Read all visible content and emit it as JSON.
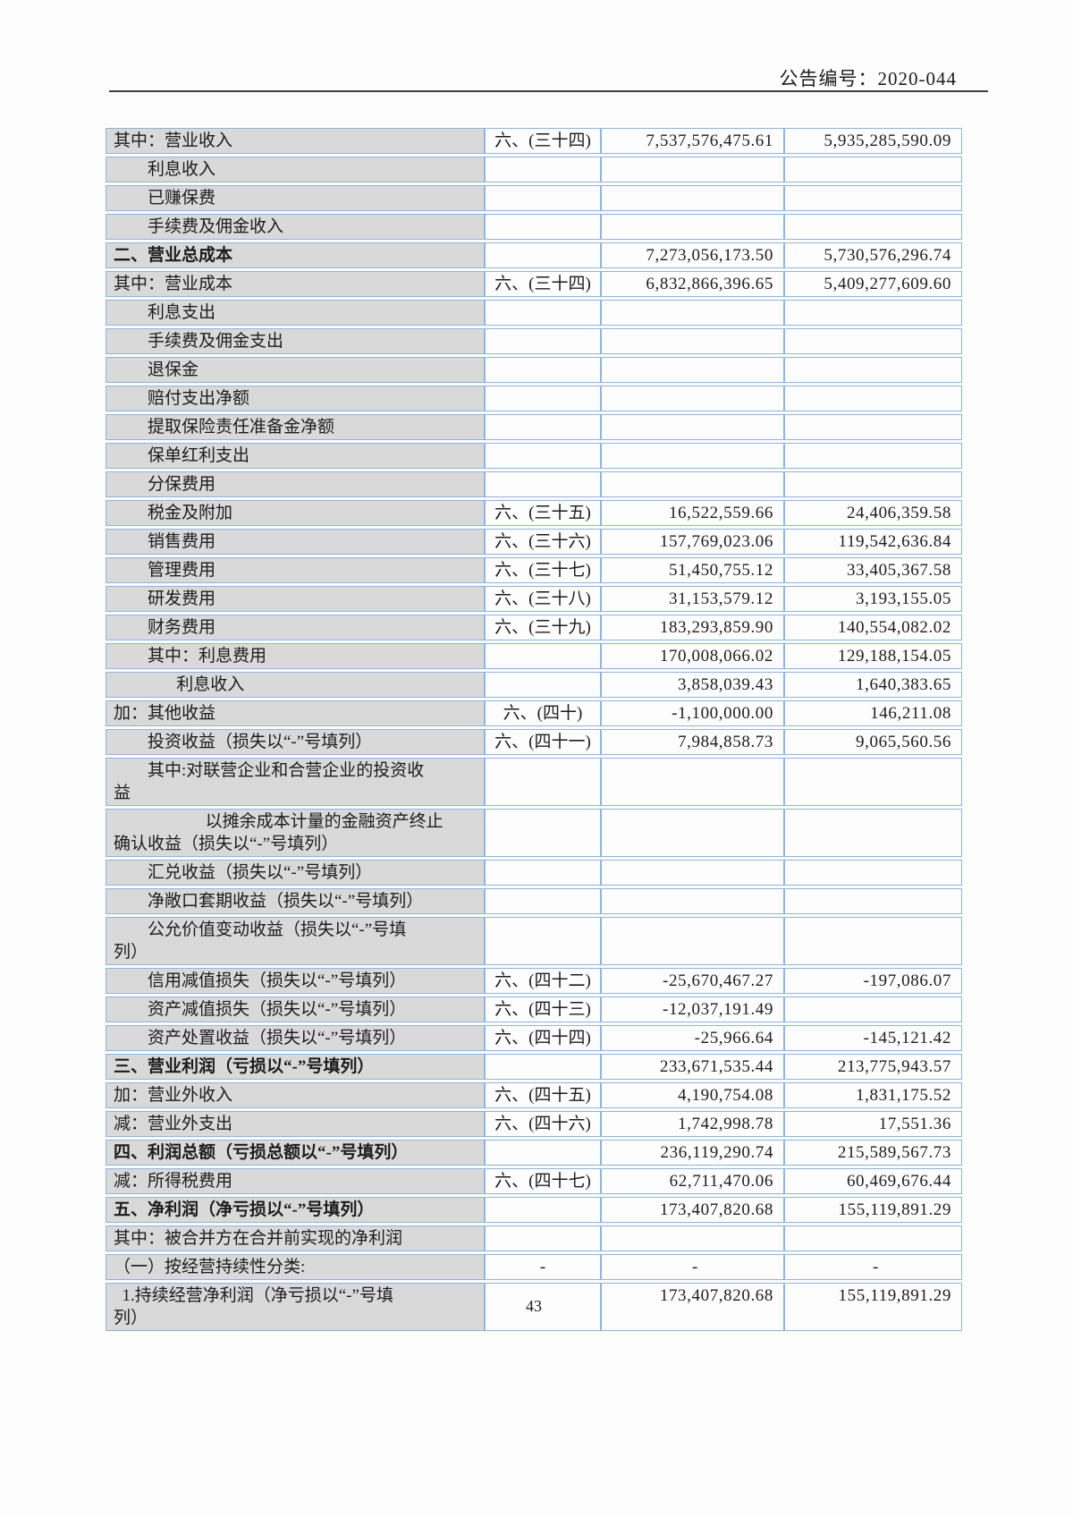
{
  "header": {
    "announcement_label": "公告编号：2020-044"
  },
  "footer": {
    "page_number": "43"
  },
  "colors": {
    "table_border": "#8db4e2",
    "item_cell_bg": "#d9d9d9",
    "rule_color": "#3f3f3f",
    "text_color": "#1c1c1c"
  },
  "table": {
    "rows": [
      {
        "item": "其中：营业收入",
        "note": "六、(三十四)",
        "current": "7,537,576,475.61",
        "prior": "5,935,285,590.09",
        "indent": 0,
        "bold": false
      },
      {
        "item": "利息收入",
        "note": "",
        "current": "",
        "prior": "",
        "indent": 1,
        "bold": false
      },
      {
        "item": "已赚保费",
        "note": "",
        "current": "",
        "prior": "",
        "indent": 1,
        "bold": false
      },
      {
        "item": "手续费及佣金收入",
        "note": "",
        "current": "",
        "prior": "",
        "indent": 1,
        "bold": false
      },
      {
        "item": "二、营业总成本",
        "note": "",
        "current": "7,273,056,173.50",
        "prior": "5,730,576,296.74",
        "indent": 0,
        "bold": true
      },
      {
        "item": "其中：营业成本",
        "note": "六、(三十四)",
        "current": "6,832,866,396.65",
        "prior": "5,409,277,609.60",
        "indent": 0,
        "bold": false
      },
      {
        "item": "利息支出",
        "note": "",
        "current": "",
        "prior": "",
        "indent": 1,
        "bold": false
      },
      {
        "item": "手续费及佣金支出",
        "note": "",
        "current": "",
        "prior": "",
        "indent": 1,
        "bold": false
      },
      {
        "item": "退保金",
        "note": "",
        "current": "",
        "prior": "",
        "indent": 1,
        "bold": false
      },
      {
        "item": "赔付支出净额",
        "note": "",
        "current": "",
        "prior": "",
        "indent": 1,
        "bold": false
      },
      {
        "item": "提取保险责任准备金净额",
        "note": "",
        "current": "",
        "prior": "",
        "indent": 1,
        "bold": false
      },
      {
        "item": "保单红利支出",
        "note": "",
        "current": "",
        "prior": "",
        "indent": 1,
        "bold": false
      },
      {
        "item": "分保费用",
        "note": "",
        "current": "",
        "prior": "",
        "indent": 1,
        "bold": false
      },
      {
        "item": "税金及附加",
        "note": "六、(三十五)",
        "current": "16,522,559.66",
        "prior": "24,406,359.58",
        "indent": 1,
        "bold": false
      },
      {
        "item": "销售费用",
        "note": "六、(三十六)",
        "current": "157,769,023.06",
        "prior": "119,542,636.84",
        "indent": 1,
        "bold": false
      },
      {
        "item": "管理费用",
        "note": "六、(三十七)",
        "current": "51,450,755.12",
        "prior": "33,405,367.58",
        "indent": 1,
        "bold": false
      },
      {
        "item": "研发费用",
        "note": "六、(三十八)",
        "current": "31,153,579.12",
        "prior": "3,193,155.05",
        "indent": 1,
        "bold": false
      },
      {
        "item": "财务费用",
        "note": "六、(三十九)",
        "current": "183,293,859.90",
        "prior": "140,554,082.02",
        "indent": 1,
        "bold": false
      },
      {
        "item": "其中：利息费用",
        "note": "",
        "current": "170,008,066.02",
        "prior": "129,188,154.05",
        "indent": 1,
        "bold": false
      },
      {
        "item": "利息收入",
        "note": "",
        "current": "3,858,039.43",
        "prior": "1,640,383.65",
        "indent": 2,
        "bold": false
      },
      {
        "item": "加：其他收益",
        "note": "六、(四十)",
        "current": "-1,100,000.00",
        "prior": "146,211.08",
        "indent": 0,
        "bold": false
      },
      {
        "item": "投资收益（损失以“-”号填列）",
        "note": "六、(四十一)",
        "current": "7,984,858.73",
        "prior": "9,065,560.56",
        "indent": 1,
        "bold": false
      },
      {
        "item": "其中:对联营企业和合营企业的投资收\n益",
        "note": "",
        "current": "",
        "prior": "",
        "indent": 1,
        "bold": false
      },
      {
        "item": "以摊余成本计量的金融资产终止\n确认收益（损失以“-”号填列）",
        "note": "",
        "current": "",
        "prior": "",
        "indent": 3,
        "bold": false
      },
      {
        "item": "汇兑收益（损失以“-”号填列）",
        "note": "",
        "current": "",
        "prior": "",
        "indent": 1,
        "bold": false
      },
      {
        "item": "净敞口套期收益（损失以“-”号填列）",
        "note": "",
        "current": "",
        "prior": "",
        "indent": 1,
        "bold": false
      },
      {
        "item": "公允价值变动收益（损失以“-”号填\n列）",
        "note": "",
        "current": "",
        "prior": "",
        "indent": 1,
        "bold": false
      },
      {
        "item": "信用减值损失（损失以“-”号填列）",
        "note": "六、(四十二)",
        "current": "-25,670,467.27",
        "prior": "-197,086.07",
        "indent": 1,
        "bold": false
      },
      {
        "item": "资产减值损失（损失以“-”号填列）",
        "note": "六、(四十三)",
        "current": "-12,037,191.49",
        "prior": "",
        "indent": 1,
        "bold": false
      },
      {
        "item": "资产处置收益（损失以“-”号填列）",
        "note": "六、(四十四)",
        "current": "-25,966.64",
        "prior": "-145,121.42",
        "indent": 1,
        "bold": false
      },
      {
        "item": "三、营业利润（亏损以“-”号填列）",
        "note": "",
        "current": "233,671,535.44",
        "prior": "213,775,943.57",
        "indent": 0,
        "bold": true
      },
      {
        "item": "加：营业外收入",
        "note": "六、(四十五)",
        "current": "4,190,754.08",
        "prior": "1,831,175.52",
        "indent": 0,
        "bold": false
      },
      {
        "item": "减：营业外支出",
        "note": "六、(四十六)",
        "current": "1,742,998.78",
        "prior": "17,551.36",
        "indent": 0,
        "bold": false
      },
      {
        "item": "四、利润总额（亏损总额以“-”号填列）",
        "note": "",
        "current": "236,119,290.74",
        "prior": "215,589,567.73",
        "indent": 0,
        "bold": true
      },
      {
        "item": "减：所得税费用",
        "note": "六、(四十七)",
        "current": "62,711,470.06",
        "prior": "60,469,676.44",
        "indent": 0,
        "bold": false
      },
      {
        "item": "五、净利润（净亏损以“-”号填列）",
        "note": "",
        "current": "173,407,820.68",
        "prior": "155,119,891.29",
        "indent": 0,
        "bold": true
      },
      {
        "item": "其中：被合并方在合并前实现的净利润",
        "note": "",
        "current": "",
        "prior": "",
        "indent": 0,
        "bold": false
      },
      {
        "item": "（一）按经营持续性分类:",
        "note": "-",
        "current": "-",
        "prior": "-",
        "indent": 0,
        "bold": false
      },
      {
        "item": "1.持续经营净利润（净亏损以“-”号填\n列）",
        "note": "",
        "current": "173,407,820.68",
        "prior": "155,119,891.29",
        "indent": 4,
        "bold": false
      }
    ]
  }
}
